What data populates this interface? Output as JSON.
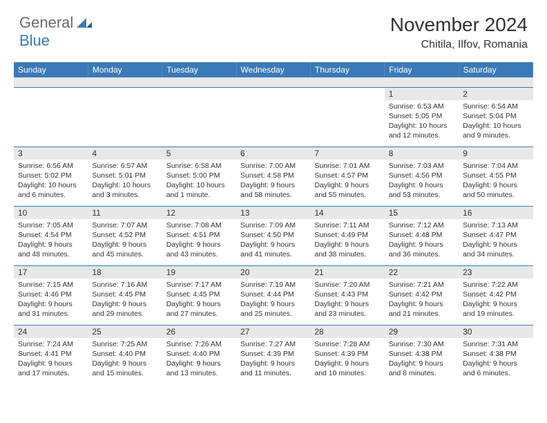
{
  "logo": {
    "general": "General",
    "blue": "Blue"
  },
  "header": {
    "month_title": "November 2024",
    "location": "Chitila, Ilfov, Romania"
  },
  "colors": {
    "accent": "#3a7ab8",
    "header_bg": "#3a7ab8",
    "daynum_bg": "#e8e8e8",
    "text": "#333333",
    "bg": "#ffffff",
    "logo_gray": "#6a6a6a"
  },
  "typography": {
    "title_fontsize": 28,
    "location_fontsize": 16,
    "dayhead_fontsize": 12,
    "body_fontsize": 10.5
  },
  "calendar": {
    "type": "table",
    "rows": 5,
    "cols": 7,
    "day_headers": [
      "Sunday",
      "Monday",
      "Tuesday",
      "Wednesday",
      "Thursday",
      "Friday",
      "Saturday"
    ],
    "leading_blanks": 5,
    "days": [
      {
        "n": "1",
        "sunrise": "Sunrise: 6:53 AM",
        "sunset": "Sunset: 5:05 PM",
        "daylight": "Daylight: 10 hours and 12 minutes."
      },
      {
        "n": "2",
        "sunrise": "Sunrise: 6:54 AM",
        "sunset": "Sunset: 5:04 PM",
        "daylight": "Daylight: 10 hours and 9 minutes."
      },
      {
        "n": "3",
        "sunrise": "Sunrise: 6:56 AM",
        "sunset": "Sunset: 5:02 PM",
        "daylight": "Daylight: 10 hours and 6 minutes."
      },
      {
        "n": "4",
        "sunrise": "Sunrise: 6:57 AM",
        "sunset": "Sunset: 5:01 PM",
        "daylight": "Daylight: 10 hours and 3 minutes."
      },
      {
        "n": "5",
        "sunrise": "Sunrise: 6:58 AM",
        "sunset": "Sunset: 5:00 PM",
        "daylight": "Daylight: 10 hours and 1 minute."
      },
      {
        "n": "6",
        "sunrise": "Sunrise: 7:00 AM",
        "sunset": "Sunset: 4:58 PM",
        "daylight": "Daylight: 9 hours and 58 minutes."
      },
      {
        "n": "7",
        "sunrise": "Sunrise: 7:01 AM",
        "sunset": "Sunset: 4:57 PM",
        "daylight": "Daylight: 9 hours and 55 minutes."
      },
      {
        "n": "8",
        "sunrise": "Sunrise: 7:03 AM",
        "sunset": "Sunset: 4:56 PM",
        "daylight": "Daylight: 9 hours and 53 minutes."
      },
      {
        "n": "9",
        "sunrise": "Sunrise: 7:04 AM",
        "sunset": "Sunset: 4:55 PM",
        "daylight": "Daylight: 9 hours and 50 minutes."
      },
      {
        "n": "10",
        "sunrise": "Sunrise: 7:05 AM",
        "sunset": "Sunset: 4:54 PM",
        "daylight": "Daylight: 9 hours and 48 minutes."
      },
      {
        "n": "11",
        "sunrise": "Sunrise: 7:07 AM",
        "sunset": "Sunset: 4:52 PM",
        "daylight": "Daylight: 9 hours and 45 minutes."
      },
      {
        "n": "12",
        "sunrise": "Sunrise: 7:08 AM",
        "sunset": "Sunset: 4:51 PM",
        "daylight": "Daylight: 9 hours and 43 minutes."
      },
      {
        "n": "13",
        "sunrise": "Sunrise: 7:09 AM",
        "sunset": "Sunset: 4:50 PM",
        "daylight": "Daylight: 9 hours and 41 minutes."
      },
      {
        "n": "14",
        "sunrise": "Sunrise: 7:11 AM",
        "sunset": "Sunset: 4:49 PM",
        "daylight": "Daylight: 9 hours and 38 minutes."
      },
      {
        "n": "15",
        "sunrise": "Sunrise: 7:12 AM",
        "sunset": "Sunset: 4:48 PM",
        "daylight": "Daylight: 9 hours and 36 minutes."
      },
      {
        "n": "16",
        "sunrise": "Sunrise: 7:13 AM",
        "sunset": "Sunset: 4:47 PM",
        "daylight": "Daylight: 9 hours and 34 minutes."
      },
      {
        "n": "17",
        "sunrise": "Sunrise: 7:15 AM",
        "sunset": "Sunset: 4:46 PM",
        "daylight": "Daylight: 9 hours and 31 minutes."
      },
      {
        "n": "18",
        "sunrise": "Sunrise: 7:16 AM",
        "sunset": "Sunset: 4:45 PM",
        "daylight": "Daylight: 9 hours and 29 minutes."
      },
      {
        "n": "19",
        "sunrise": "Sunrise: 7:17 AM",
        "sunset": "Sunset: 4:45 PM",
        "daylight": "Daylight: 9 hours and 27 minutes."
      },
      {
        "n": "20",
        "sunrise": "Sunrise: 7:19 AM",
        "sunset": "Sunset: 4:44 PM",
        "daylight": "Daylight: 9 hours and 25 minutes."
      },
      {
        "n": "21",
        "sunrise": "Sunrise: 7:20 AM",
        "sunset": "Sunset: 4:43 PM",
        "daylight": "Daylight: 9 hours and 23 minutes."
      },
      {
        "n": "22",
        "sunrise": "Sunrise: 7:21 AM",
        "sunset": "Sunset: 4:42 PM",
        "daylight": "Daylight: 9 hours and 21 minutes."
      },
      {
        "n": "23",
        "sunrise": "Sunrise: 7:22 AM",
        "sunset": "Sunset: 4:42 PM",
        "daylight": "Daylight: 9 hours and 19 minutes."
      },
      {
        "n": "24",
        "sunrise": "Sunrise: 7:24 AM",
        "sunset": "Sunset: 4:41 PM",
        "daylight": "Daylight: 9 hours and 17 minutes."
      },
      {
        "n": "25",
        "sunrise": "Sunrise: 7:25 AM",
        "sunset": "Sunset: 4:40 PM",
        "daylight": "Daylight: 9 hours and 15 minutes."
      },
      {
        "n": "26",
        "sunrise": "Sunrise: 7:26 AM",
        "sunset": "Sunset: 4:40 PM",
        "daylight": "Daylight: 9 hours and 13 minutes."
      },
      {
        "n": "27",
        "sunrise": "Sunrise: 7:27 AM",
        "sunset": "Sunset: 4:39 PM",
        "daylight": "Daylight: 9 hours and 11 minutes."
      },
      {
        "n": "28",
        "sunrise": "Sunrise: 7:28 AM",
        "sunset": "Sunset: 4:39 PM",
        "daylight": "Daylight: 9 hours and 10 minutes."
      },
      {
        "n": "29",
        "sunrise": "Sunrise: 7:30 AM",
        "sunset": "Sunset: 4:38 PM",
        "daylight": "Daylight: 9 hours and 8 minutes."
      },
      {
        "n": "30",
        "sunrise": "Sunrise: 7:31 AM",
        "sunset": "Sunset: 4:38 PM",
        "daylight": "Daylight: 9 hours and 6 minutes."
      }
    ]
  }
}
